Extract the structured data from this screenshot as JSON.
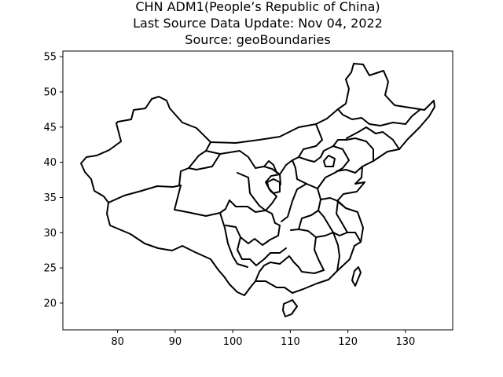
{
  "title": {
    "line1": "CHN ADM1(People’s Republic of China)",
    "line2": "Last Source Data Update: Nov 04, 2022",
    "line3": "Source: geoBoundaries"
  },
  "chart_data": {
    "type": "map",
    "title": "CHN ADM1(People’s Republic of China)\nLast Source Data Update: Nov 04, 2022\nSource: geoBoundaries",
    "xlabel": "",
    "ylabel": "",
    "xlim": [
      70.5,
      138.2
    ],
    "ylim": [
      16.2,
      55.8
    ],
    "x_ticks": [
      80,
      90,
      100,
      110,
      120,
      130
    ],
    "y_ticks": [
      20,
      25,
      30,
      35,
      40,
      45,
      50,
      55
    ],
    "grid": false,
    "line_color": "#000000"
  }
}
